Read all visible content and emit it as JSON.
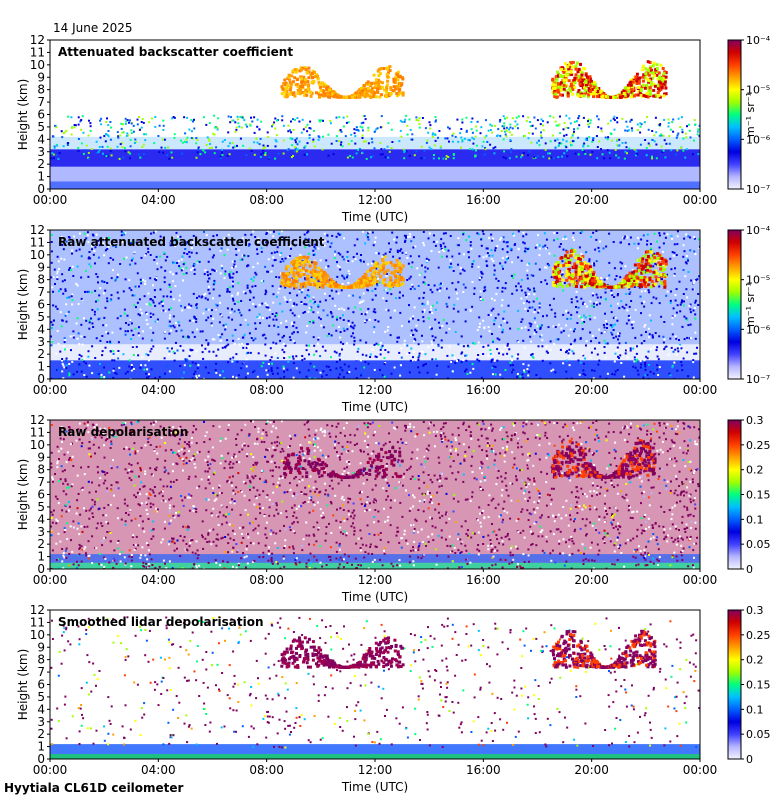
{
  "header": {
    "date": "14 June 2025"
  },
  "footer": {
    "site_label": "Hyytiala CL61D ceilometer"
  },
  "colors": {
    "jet": [
      "#f2f2ff",
      "#b4b4ff",
      "#4040ff",
      "#0000e0",
      "#0060ff",
      "#00c0ff",
      "#00ff80",
      "#a0ff00",
      "#ffff00",
      "#ffa000",
      "#ff4000",
      "#d00000",
      "#800060"
    ],
    "background": "#ffffff"
  },
  "chart_data": [
    {
      "type": "heatmap",
      "title": "Attenuated backscatter coefficient",
      "xlabel": "Time (UTC)",
      "ylabel": "Height (km)",
      "x_ticks": [
        "00:00",
        "04:00",
        "08:00",
        "12:00",
        "16:00",
        "20:00",
        "00:00"
      ],
      "y_ticks": [
        "0",
        "1",
        "2",
        "3",
        "4",
        "5",
        "6",
        "7",
        "8",
        "9",
        "10",
        "11",
        "12"
      ],
      "ylim": [
        0,
        12
      ],
      "colorbar": {
        "scale": "log",
        "ticks": [
          "10-7",
          "10-6",
          "10-5",
          "10-4"
        ],
        "ticks_display": [
          "10⁻⁷",
          "10⁻⁶",
          "10⁻⁵",
          "10⁻⁴"
        ],
        "unit": "m⁻¹ sr⁻¹"
      },
      "features": [
        {
          "kind": "boundary_layer",
          "time_h": [
            0,
            24
          ],
          "top_km": 3.5
        },
        {
          "kind": "cloud",
          "time_h": [
            8.5,
            13
          ],
          "height_km": [
            7.5,
            10
          ]
        },
        {
          "kind": "cloud",
          "time_h": [
            18.5,
            22.5
          ],
          "height_km": [
            7.5,
            10.5
          ]
        }
      ]
    },
    {
      "type": "heatmap",
      "title": "Raw attenuated backscatter coefficient",
      "xlabel": "Time (UTC)",
      "ylabel": "Height (km)",
      "x_ticks": [
        "00:00",
        "04:00",
        "08:00",
        "12:00",
        "16:00",
        "20:00",
        "00:00"
      ],
      "y_ticks": [
        "0",
        "1",
        "2",
        "3",
        "4",
        "5",
        "6",
        "7",
        "8",
        "9",
        "10",
        "11",
        "12"
      ],
      "ylim": [
        0,
        12
      ],
      "colorbar": {
        "scale": "log",
        "ticks": [
          "10-7",
          "10-6",
          "10-5",
          "10-4"
        ],
        "ticks_display": [
          "10⁻⁷",
          "10⁻⁶",
          "10⁻⁵",
          "10⁻⁴"
        ],
        "unit": "m⁻¹ sr⁻¹"
      }
    },
    {
      "type": "heatmap",
      "title": "Raw depolarisation",
      "xlabel": "Time (UTC)",
      "ylabel": "Height (km)",
      "x_ticks": [
        "00:00",
        "04:00",
        "08:00",
        "12:00",
        "16:00",
        "20:00",
        "00:00"
      ],
      "y_ticks": [
        "0",
        "1",
        "2",
        "3",
        "4",
        "5",
        "6",
        "7",
        "8",
        "9",
        "10",
        "11",
        "12"
      ],
      "ylim": [
        0,
        12
      ],
      "colorbar": {
        "scale": "linear",
        "range": [
          0,
          0.3
        ],
        "ticks": [
          "0",
          "0.05",
          "0.1",
          "0.15",
          "0.2",
          "0.25",
          "0.3"
        ]
      }
    },
    {
      "type": "heatmap",
      "title": "Smoothed lidar depolarisation",
      "xlabel": "Time (UTC)",
      "ylabel": "Height (km)",
      "x_ticks": [
        "00:00",
        "04:00",
        "08:00",
        "12:00",
        "16:00",
        "20:00",
        "00:00"
      ],
      "y_ticks": [
        "0",
        "1",
        "2",
        "3",
        "4",
        "5",
        "6",
        "7",
        "8",
        "9",
        "10",
        "11",
        "12"
      ],
      "ylim": [
        0,
        12
      ],
      "colorbar": {
        "scale": "linear",
        "range": [
          0,
          0.3
        ],
        "ticks": [
          "0",
          "0.05",
          "0.1",
          "0.15",
          "0.2",
          "0.25",
          "0.3"
        ]
      }
    }
  ]
}
